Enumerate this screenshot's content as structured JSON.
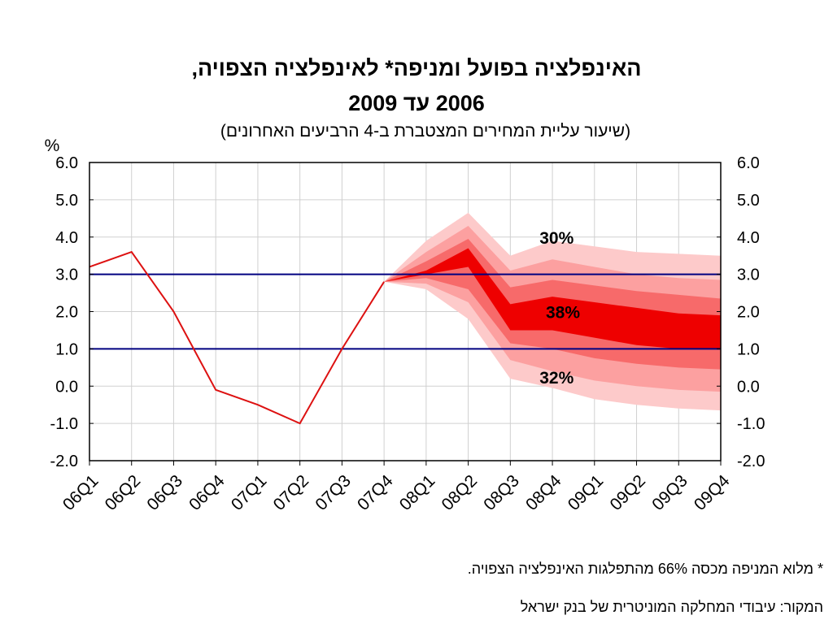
{
  "title_line1": "האינפלציה בפועל ומניפה* לאינפלציה הצפויה,",
  "title_line2": "2006 עד 2009",
  "subtitle": "(שיעור עליית המחירים המצטברת ב-4 הרביעים האחרונים)",
  "footnote": "* מלוא המניפה מכסה 66% מהתפלגות האינפלציה הצפויה.",
  "source": "המקור: עיבודי המחלקה המוניטרית של בנק ישראל",
  "colors": {
    "actual_line": "#dd1111",
    "band_inner": "#ee0000",
    "band_mid": "#f76a6a",
    "band_outer2": "#fca0a0",
    "band_outer": "#fdcaca",
    "target_line": "#000080",
    "grid": "#d0d0d0"
  },
  "chart_data": {
    "type": "line",
    "categories": [
      "06Q1",
      "06Q2",
      "06Q3",
      "06Q4",
      "07Q1",
      "07Q2",
      "07Q3",
      "07Q4",
      "08Q1",
      "08Q2",
      "08Q3",
      "08Q4",
      "09Q1",
      "09Q2",
      "09Q3",
      "09Q4"
    ],
    "y_unit": "%",
    "ylim": [
      -2.0,
      6.0
    ],
    "yticks": [
      "6.0",
      "5.0",
      "4.0",
      "3.0",
      "2.0",
      "1.0",
      "0.0",
      "-1.0",
      "-2.0"
    ],
    "grid": true,
    "actual_inflation": [
      3.2,
      3.6,
      2.0,
      -0.1,
      -0.5,
      -1.0,
      1.0,
      2.8
    ],
    "target_range": [
      1.0,
      3.0
    ],
    "fan_start_index": 7,
    "fan_bands": {
      "outer": {
        "upper": [
          2.8,
          3.9,
          4.65,
          3.5,
          3.9,
          3.75,
          3.6,
          3.55,
          3.5
        ],
        "lower": [
          2.8,
          2.6,
          1.8,
          0.2,
          -0.05,
          -0.35,
          -0.5,
          -0.6,
          -0.65
        ]
      },
      "outer2": {
        "upper": [
          2.8,
          3.6,
          4.3,
          3.1,
          3.4,
          3.2,
          3.0,
          2.9,
          2.85
        ],
        "lower": [
          2.8,
          2.75,
          2.25,
          0.7,
          0.4,
          0.15,
          0.0,
          -0.1,
          -0.15
        ]
      },
      "mid": {
        "upper": [
          2.8,
          3.35,
          3.95,
          2.65,
          2.85,
          2.7,
          2.55,
          2.45,
          2.35
        ],
        "lower": [
          2.8,
          2.9,
          2.6,
          1.15,
          1.0,
          0.75,
          0.6,
          0.5,
          0.45
        ]
      },
      "inner": {
        "upper": [
          2.8,
          3.1,
          3.7,
          2.2,
          2.4,
          2.25,
          2.1,
          1.95,
          1.9
        ],
        "lower": [
          2.8,
          3.0,
          3.2,
          1.5,
          1.5,
          1.3,
          1.1,
          1.0,
          1.0
        ]
      }
    },
    "annotations": [
      {
        "text": "30%",
        "x_index": 11.1,
        "y": 4.0
      },
      {
        "text": "38%",
        "x_index": 11.25,
        "y": 2.0
      },
      {
        "text": "32%",
        "x_index": 11.1,
        "y": 0.25
      }
    ]
  }
}
